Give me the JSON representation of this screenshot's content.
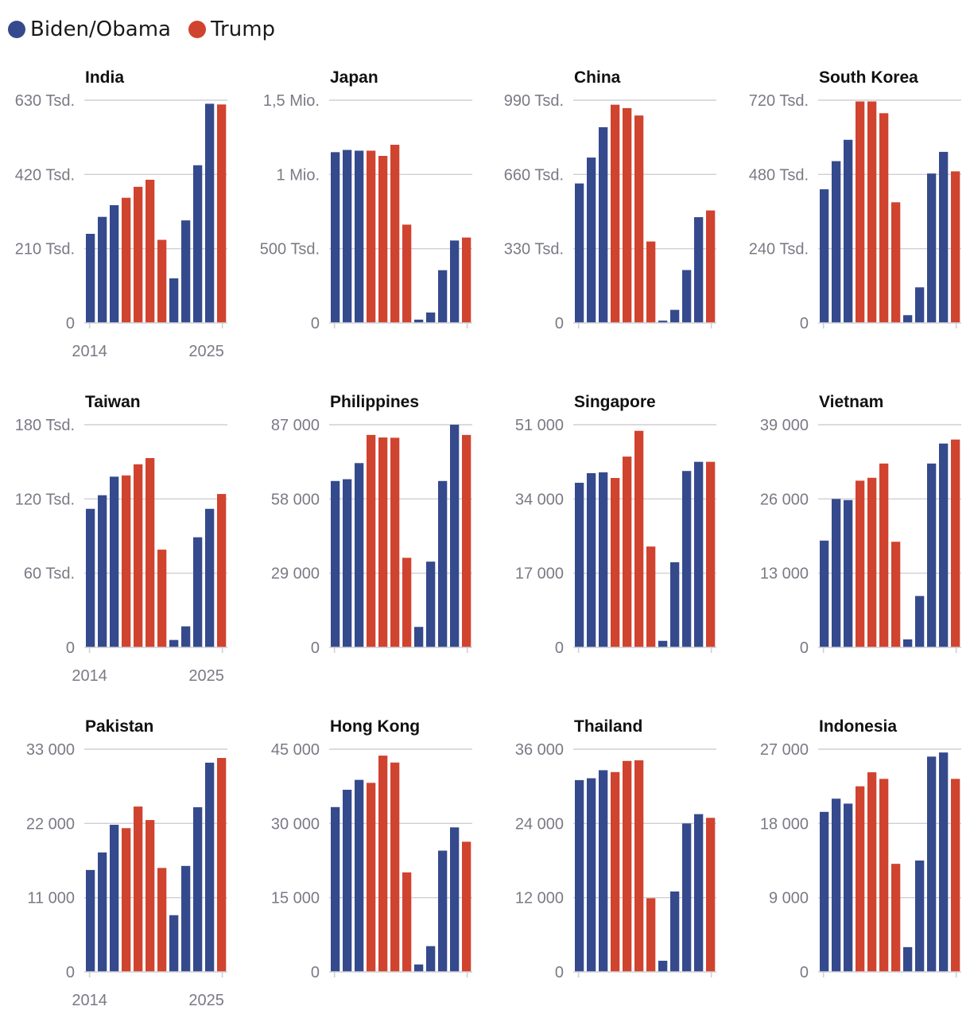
{
  "legend": [
    {
      "label": "Biden/Obama",
      "color": "#354a8c"
    },
    {
      "label": "Trump",
      "color": "#d0432f"
    }
  ],
  "colors": {
    "Biden/Obama": "#354a8c",
    "Trump": "#d0432f"
  },
  "chart_data": [
    {
      "type": "bar",
      "title": "India",
      "ylim": [
        0,
        630000
      ],
      "yticks": [
        0,
        210000,
        420000,
        630000
      ],
      "ytick_labels": [
        "0",
        "210 Tsd.",
        "420 Tsd.",
        "630 Tsd."
      ],
      "x": [
        2014,
        2015,
        2016,
        2017,
        2018,
        2019,
        2020,
        2021,
        2022,
        2023,
        2024,
        2025
      ],
      "xtick_labels": [
        "2014",
        "2025"
      ],
      "administration": [
        "Biden/Obama",
        "Biden/Obama",
        "Biden/Obama",
        "Trump",
        "Trump",
        "Trump",
        "Trump",
        "Biden/Obama",
        "Biden/Obama",
        "Biden/Obama",
        "Biden/Obama",
        "Trump"
      ],
      "values": [
        252000,
        300000,
        333000,
        354000,
        385000,
        405000,
        235000,
        126000,
        290000,
        446000,
        620000,
        618000
      ]
    },
    {
      "type": "bar",
      "title": "Japan",
      "ylim": [
        0,
        1500000
      ],
      "yticks": [
        0,
        500000,
        1000000,
        1500000
      ],
      "ytick_labels": [
        "0",
        "500 Tsd.",
        "1 Mio.",
        "1,5 Mio."
      ],
      "x": [
        2014,
        2015,
        2016,
        2017,
        2018,
        2019,
        2020,
        2021,
        2022,
        2023,
        2024,
        2025
      ],
      "administration": [
        "Biden/Obama",
        "Biden/Obama",
        "Biden/Obama",
        "Trump",
        "Trump",
        "Trump",
        "Trump",
        "Biden/Obama",
        "Biden/Obama",
        "Biden/Obama",
        "Biden/Obama",
        "Trump"
      ],
      "values": [
        1150000,
        1165000,
        1160000,
        1160000,
        1125000,
        1200000,
        662000,
        22000,
        70000,
        355000,
        555000,
        575000
      ]
    },
    {
      "type": "bar",
      "title": "China",
      "ylim": [
        0,
        990000
      ],
      "yticks": [
        0,
        330000,
        660000,
        990000
      ],
      "ytick_labels": [
        "0",
        "330 Tsd.",
        "660 Tsd.",
        "990 Tsd."
      ],
      "x": [
        2014,
        2015,
        2016,
        2017,
        2018,
        2019,
        2020,
        2021,
        2022,
        2023,
        2024,
        2025
      ],
      "administration": [
        "Biden/Obama",
        "Biden/Obama",
        "Biden/Obama",
        "Trump",
        "Trump",
        "Trump",
        "Trump",
        "Biden/Obama",
        "Biden/Obama",
        "Biden/Obama",
        "Biden/Obama",
        "Trump"
      ],
      "values": [
        620000,
        735000,
        870000,
        970000,
        955000,
        922000,
        362000,
        10000,
        58000,
        235000,
        470000,
        500000
      ]
    },
    {
      "type": "bar",
      "title": "South Korea",
      "ylim": [
        0,
        720000
      ],
      "yticks": [
        0,
        240000,
        480000,
        720000
      ],
      "ytick_labels": [
        "0",
        "240 Tsd.",
        "480 Tsd.",
        "720 Tsd."
      ],
      "x": [
        2014,
        2015,
        2016,
        2017,
        2018,
        2019,
        2020,
        2021,
        2022,
        2023,
        2024,
        2025
      ],
      "administration": [
        "Biden/Obama",
        "Biden/Obama",
        "Biden/Obama",
        "Trump",
        "Trump",
        "Trump",
        "Trump",
        "Biden/Obama",
        "Biden/Obama",
        "Biden/Obama",
        "Biden/Obama",
        "Trump"
      ],
      "values": [
        432000,
        523000,
        592000,
        716000,
        716000,
        678000,
        390000,
        25000,
        115000,
        483000,
        553000,
        490000
      ]
    },
    {
      "type": "bar",
      "title": "Taiwan",
      "ylim": [
        0,
        180000
      ],
      "yticks": [
        0,
        60000,
        120000,
        180000
      ],
      "ytick_labels": [
        "0",
        "60 Tsd.",
        "120 Tsd.",
        "180 Tsd."
      ],
      "x": [
        2014,
        2015,
        2016,
        2017,
        2018,
        2019,
        2020,
        2021,
        2022,
        2023,
        2024,
        2025
      ],
      "xtick_labels": [
        "2014",
        "2025"
      ],
      "administration": [
        "Biden/Obama",
        "Biden/Obama",
        "Biden/Obama",
        "Trump",
        "Trump",
        "Trump",
        "Trump",
        "Biden/Obama",
        "Biden/Obama",
        "Biden/Obama",
        "Biden/Obama",
        "Trump"
      ],
      "values": [
        112000,
        123000,
        138000,
        139000,
        148000,
        153000,
        79000,
        6000,
        17000,
        89000,
        112000,
        124000
      ]
    },
    {
      "type": "bar",
      "title": "Philippines",
      "ylim": [
        0,
        87000
      ],
      "yticks": [
        0,
        29000,
        58000,
        87000
      ],
      "ytick_labels": [
        "0",
        "29 000",
        "58 000",
        "87 000"
      ],
      "x": [
        2014,
        2015,
        2016,
        2017,
        2018,
        2019,
        2020,
        2021,
        2022,
        2023,
        2024,
        2025
      ],
      "administration": [
        "Biden/Obama",
        "Biden/Obama",
        "Biden/Obama",
        "Trump",
        "Trump",
        "Trump",
        "Trump",
        "Biden/Obama",
        "Biden/Obama",
        "Biden/Obama",
        "Biden/Obama",
        "Trump"
      ],
      "values": [
        65000,
        65700,
        72000,
        83000,
        82000,
        81900,
        35000,
        8000,
        33500,
        65000,
        87000,
        83000
      ]
    },
    {
      "type": "bar",
      "title": "Singapore",
      "ylim": [
        0,
        51000
      ],
      "yticks": [
        0,
        17000,
        34000,
        51000
      ],
      "ytick_labels": [
        "0",
        "17 000",
        "34 000",
        "51 000"
      ],
      "x": [
        2014,
        2015,
        2016,
        2017,
        2018,
        2019,
        2020,
        2021,
        2022,
        2023,
        2024,
        2025
      ],
      "administration": [
        "Biden/Obama",
        "Biden/Obama",
        "Biden/Obama",
        "Trump",
        "Trump",
        "Trump",
        "Trump",
        "Biden/Obama",
        "Biden/Obama",
        "Biden/Obama",
        "Biden/Obama",
        "Trump"
      ],
      "values": [
        37700,
        39900,
        40100,
        38800,
        43700,
        49600,
        23100,
        1500,
        19500,
        40400,
        42500,
        42500
      ]
    },
    {
      "type": "bar",
      "title": "Vietnam",
      "ylim": [
        0,
        39000
      ],
      "yticks": [
        0,
        13000,
        26000,
        39000
      ],
      "ytick_labels": [
        "0",
        "13 000",
        "26 000",
        "39 000"
      ],
      "x": [
        2014,
        2015,
        2016,
        2017,
        2018,
        2019,
        2020,
        2021,
        2022,
        2023,
        2024,
        2025
      ],
      "administration": [
        "Biden/Obama",
        "Biden/Obama",
        "Biden/Obama",
        "Trump",
        "Trump",
        "Trump",
        "Trump",
        "Biden/Obama",
        "Biden/Obama",
        "Biden/Obama",
        "Biden/Obama",
        "Trump"
      ],
      "values": [
        18700,
        26000,
        25800,
        29200,
        29700,
        32200,
        18500,
        1400,
        9000,
        32200,
        35700,
        36400
      ]
    },
    {
      "type": "bar",
      "title": "Pakistan",
      "ylim": [
        0,
        33000
      ],
      "yticks": [
        0,
        11000,
        22000,
        33000
      ],
      "ytick_labels": [
        "0",
        "11 000",
        "22 000",
        "33 000"
      ],
      "x": [
        2014,
        2015,
        2016,
        2017,
        2018,
        2019,
        2020,
        2021,
        2022,
        2023,
        2024,
        2025
      ],
      "xtick_labels": [
        "2014",
        "2025"
      ],
      "administration": [
        "Biden/Obama",
        "Biden/Obama",
        "Biden/Obama",
        "Trump",
        "Trump",
        "Trump",
        "Trump",
        "Biden/Obama",
        "Biden/Obama",
        "Biden/Obama",
        "Biden/Obama",
        "Trump"
      ],
      "values": [
        15100,
        17700,
        21800,
        21300,
        24500,
        22500,
        15400,
        8400,
        15700,
        24400,
        31000,
        31700
      ]
    },
    {
      "type": "bar",
      "title": "Hong Kong",
      "ylim": [
        0,
        45000
      ],
      "yticks": [
        0,
        15000,
        30000,
        45000
      ],
      "ytick_labels": [
        "0",
        "15 000",
        "30 000",
        "45 000"
      ],
      "x": [
        2014,
        2015,
        2016,
        2017,
        2018,
        2019,
        2020,
        2021,
        2022,
        2023,
        2024,
        2025
      ],
      "administration": [
        "Biden/Obama",
        "Biden/Obama",
        "Biden/Obama",
        "Trump",
        "Trump",
        "Trump",
        "Trump",
        "Biden/Obama",
        "Biden/Obama",
        "Biden/Obama",
        "Biden/Obama",
        "Trump"
      ],
      "values": [
        33300,
        36800,
        38800,
        38200,
        43700,
        42300,
        20100,
        1500,
        5200,
        24500,
        29200,
        26300
      ]
    },
    {
      "type": "bar",
      "title": "Thailand",
      "ylim": [
        0,
        36000
      ],
      "yticks": [
        0,
        12000,
        24000,
        36000
      ],
      "ytick_labels": [
        "0",
        "12 000",
        "24 000",
        "36 000"
      ],
      "x": [
        2014,
        2015,
        2016,
        2017,
        2018,
        2019,
        2020,
        2021,
        2022,
        2023,
        2024,
        2025
      ],
      "administration": [
        "Biden/Obama",
        "Biden/Obama",
        "Biden/Obama",
        "Trump",
        "Trump",
        "Trump",
        "Trump",
        "Biden/Obama",
        "Biden/Obama",
        "Biden/Obama",
        "Biden/Obama",
        "Trump"
      ],
      "values": [
        31000,
        31300,
        32600,
        32300,
        34100,
        34200,
        11900,
        1800,
        13000,
        24000,
        25500,
        24900
      ]
    },
    {
      "type": "bar",
      "title": "Indonesia",
      "ylim": [
        0,
        27000
      ],
      "yticks": [
        0,
        9000,
        18000,
        27000
      ],
      "ytick_labels": [
        "0",
        "9 000",
        "18 000",
        "27 000"
      ],
      "x": [
        2014,
        2015,
        2016,
        2017,
        2018,
        2019,
        2020,
        2021,
        2022,
        2023,
        2024,
        2025
      ],
      "administration": [
        "Biden/Obama",
        "Biden/Obama",
        "Biden/Obama",
        "Trump",
        "Trump",
        "Trump",
        "Trump",
        "Biden/Obama",
        "Biden/Obama",
        "Biden/Obama",
        "Biden/Obama",
        "Trump"
      ],
      "values": [
        19400,
        21000,
        20400,
        22500,
        24200,
        23400,
        13100,
        3000,
        13500,
        26100,
        26600,
        23400
      ]
    }
  ]
}
